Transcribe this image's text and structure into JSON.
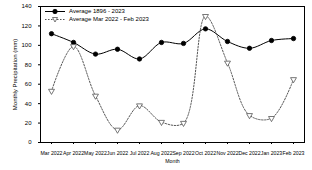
{
  "chart_data": {
    "type": "line",
    "categories": [
      "Mar 2022",
      "Apr 2022",
      "May 2022",
      "Jun 2022",
      "Jul 2022",
      "Aug 2022",
      "Sep 2022",
      "Oct 2022",
      "Nov 2022",
      "Dec 2022",
      "Jan 2023",
      "Feb 2023"
    ],
    "series": [
      {
        "name": "Average 1896 - 2023",
        "color": "#000000",
        "marker": "circle",
        "line_style": "solid",
        "values": [
          112,
          103,
          91,
          96,
          86,
          103,
          102,
          117,
          104,
          97,
          105,
          107
        ]
      },
      {
        "name": "Average Mar 2022 - Feb 2023",
        "color": "#555555",
        "marker": "triangle-down",
        "line_style": "dotted",
        "values": [
          53,
          99,
          48,
          13,
          38,
          21,
          20,
          130,
          82,
          28,
          25,
          65
        ]
      }
    ],
    "x_label": "Month",
    "y_label": "Monthly Precipitation (mm)",
    "ylim": [
      0,
      140
    ],
    "yticks": [
      0,
      20,
      40,
      60,
      80,
      100,
      120,
      140
    ],
    "legend": "top-left",
    "grid": false
  }
}
